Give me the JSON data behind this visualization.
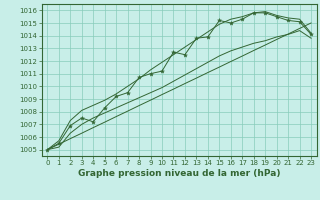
{
  "title": "Graphe pression niveau de la mer (hPa)",
  "bg_color": "#c8eee8",
  "grid_color": "#88ccbb",
  "line_color": "#336633",
  "x_values": [
    0,
    1,
    2,
    3,
    4,
    5,
    6,
    7,
    8,
    9,
    10,
    11,
    12,
    13,
    14,
    15,
    16,
    17,
    18,
    19,
    20,
    21,
    22,
    23
  ],
  "y_main": [
    1005.0,
    1005.5,
    1006.9,
    1007.5,
    1007.2,
    1008.3,
    1009.2,
    1009.5,
    1010.7,
    1011.0,
    1011.2,
    1012.7,
    1012.5,
    1013.8,
    1013.9,
    1015.2,
    1015.0,
    1015.3,
    1015.8,
    1015.8,
    1015.5,
    1015.2,
    1015.1,
    1014.1
  ],
  "y_min_line": [
    1005.0,
    1005.2,
    1006.3,
    1007.0,
    1007.5,
    1007.9,
    1008.3,
    1008.7,
    1009.1,
    1009.5,
    1009.9,
    1010.4,
    1010.9,
    1011.4,
    1011.9,
    1012.4,
    1012.8,
    1013.1,
    1013.4,
    1013.6,
    1013.9,
    1014.1,
    1014.4,
    1013.8
  ],
  "y_max_line": [
    1005.0,
    1005.7,
    1007.3,
    1008.1,
    1008.5,
    1008.9,
    1009.4,
    1010.0,
    1010.6,
    1011.3,
    1011.9,
    1012.5,
    1013.1,
    1013.7,
    1014.3,
    1014.9,
    1015.3,
    1015.5,
    1015.8,
    1015.9,
    1015.6,
    1015.4,
    1015.3,
    1014.2
  ],
  "y_trend": [
    1005.0,
    1005.43,
    1005.87,
    1006.3,
    1006.74,
    1007.17,
    1007.61,
    1008.04,
    1008.48,
    1008.91,
    1009.35,
    1009.78,
    1010.22,
    1010.65,
    1011.09,
    1011.52,
    1011.96,
    1012.39,
    1012.83,
    1013.26,
    1013.7,
    1014.13,
    1014.57,
    1015.0
  ],
  "ylim": [
    1004.5,
    1016.5
  ],
  "xlim": [
    -0.5,
    23.5
  ],
  "yticks": [
    1005,
    1006,
    1007,
    1008,
    1009,
    1010,
    1011,
    1012,
    1013,
    1014,
    1015,
    1016
  ],
  "xticks": [
    0,
    1,
    2,
    3,
    4,
    5,
    6,
    7,
    8,
    9,
    10,
    11,
    12,
    13,
    14,
    15,
    16,
    17,
    18,
    19,
    20,
    21,
    22,
    23
  ],
  "tick_fontsize": 5,
  "label_fontsize": 6.5,
  "figsize": [
    3.2,
    2.0
  ],
  "dpi": 100
}
